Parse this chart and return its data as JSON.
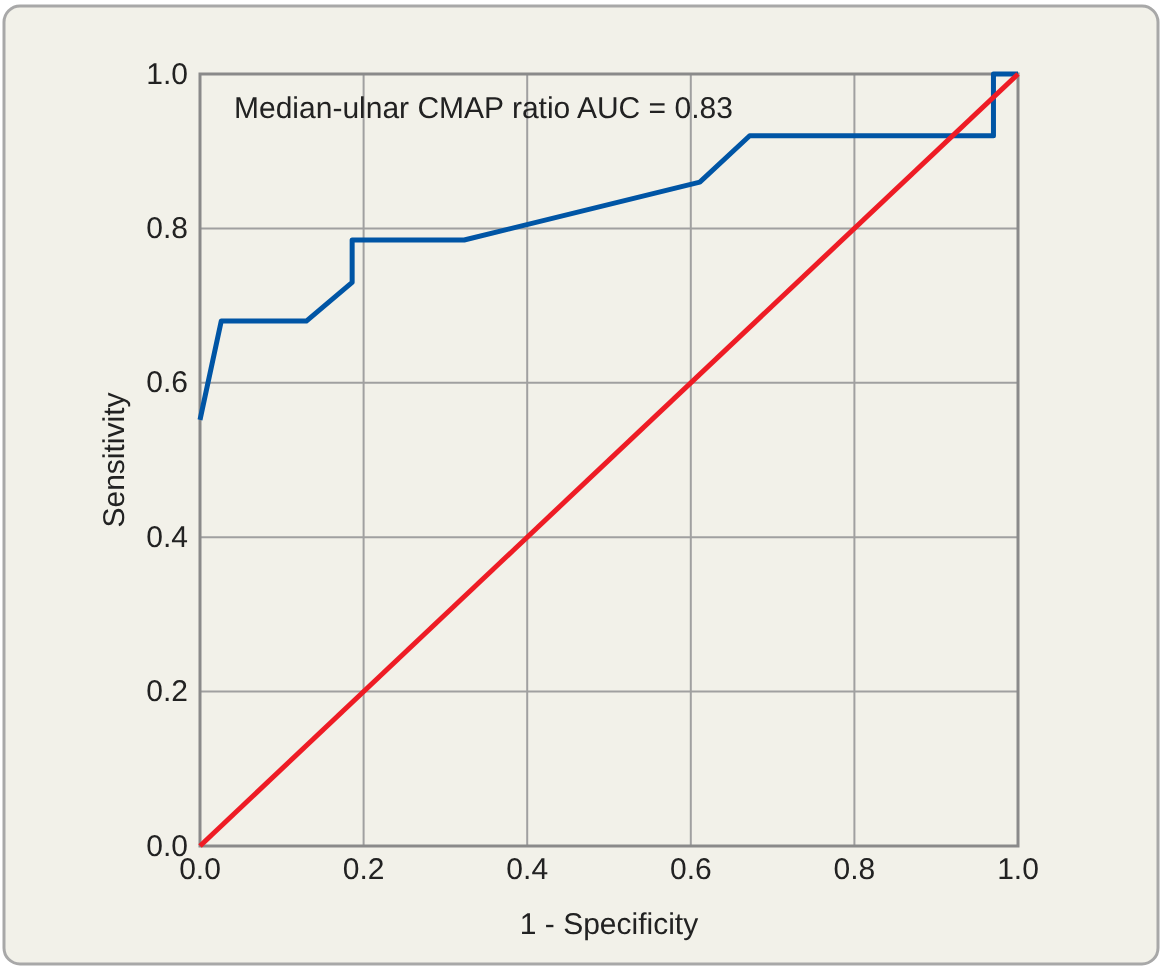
{
  "chart_data": {
    "type": "line",
    "xlabel": "1 - Specificity",
    "ylabel": "Sensitivity",
    "annotations": [
      "Median-ulnar CMAP ratio AUC = 0.83"
    ],
    "xlim": [
      0,
      1
    ],
    "ylim": [
      0,
      1
    ],
    "xticks": [
      "0.0",
      0.2,
      0.4,
      0.6,
      0.8,
      "1.0"
    ],
    "yticks": [
      "0.0",
      0.2,
      0.4,
      0.6,
      0.8,
      "1.0"
    ],
    "grid": true,
    "series": [
      {
        "color": "#0055a5",
        "x": [
          0,
          0.026,
          0.13,
          0.186,
          0.186,
          0.323,
          0.611,
          0.672,
          0.97,
          0.97,
          1
        ],
        "values": [
          0.552,
          0.68,
          0.68,
          0.73,
          0.785,
          0.785,
          0.86,
          0.92,
          0.92,
          1,
          1
        ]
      },
      {
        "color": "#ee1c25",
        "x": [
          0,
          1
        ],
        "values": [
          0,
          1
        ]
      }
    ]
  }
}
